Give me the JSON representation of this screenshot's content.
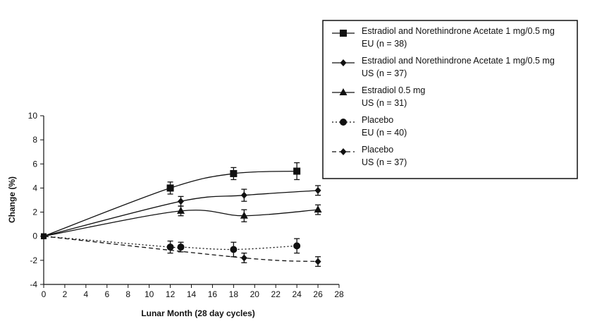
{
  "chart_data": {
    "type": "line",
    "xlabel": "Lunar Month (28 day cycles)",
    "ylabel": "Change (%)",
    "xlim": [
      0,
      28
    ],
    "ylim": [
      -4,
      10
    ],
    "xticks": [
      0,
      2,
      4,
      6,
      8,
      10,
      12,
      14,
      16,
      18,
      20,
      22,
      24,
      26,
      28
    ],
    "yticks": [
      -4,
      -2,
      0,
      2,
      4,
      6,
      8,
      10
    ],
    "grid": false,
    "legend_position": "top-right",
    "series": [
      {
        "name": "Estradiol and Norethindrone Acetate 1 mg/0.5 mg",
        "subname": "EU (n = 38)",
        "marker": "square",
        "line_style": "solid",
        "x": [
          0,
          12,
          18,
          24
        ],
        "y": [
          0,
          4.0,
          5.2,
          5.4
        ],
        "err": [
          0,
          0.5,
          0.5,
          0.7
        ]
      },
      {
        "name": "Estradiol and Norethindrone Acetate 1 mg/0.5 mg",
        "subname": "US (n = 37)",
        "marker": "diamond",
        "line_style": "solid",
        "x": [
          0,
          13,
          19,
          26
        ],
        "y": [
          0,
          2.9,
          3.4,
          3.8
        ],
        "err": [
          0,
          0.4,
          0.5,
          0.4
        ]
      },
      {
        "name": "Estradiol 0.5 mg",
        "subname": "US (n = 31)",
        "marker": "triangle",
        "line_style": "solid",
        "x": [
          0,
          13,
          19,
          26
        ],
        "y": [
          0,
          2.1,
          1.7,
          2.2
        ],
        "err": [
          0,
          0.4,
          0.5,
          0.4
        ]
      },
      {
        "name": "Placebo",
        "subname": "EU (n = 40)",
        "marker": "circle",
        "line_style": "dotted",
        "x": [
          0,
          12,
          13,
          18,
          24
        ],
        "y": [
          0,
          -0.9,
          -0.9,
          -1.1,
          -0.8
        ],
        "err": [
          0,
          0.5,
          0.4,
          0.6,
          0.6
        ]
      },
      {
        "name": "Placebo",
        "subname": "US (n = 37)",
        "marker": "diamond",
        "line_style": "dashed",
        "x": [
          0,
          19,
          26
        ],
        "y": [
          0,
          -1.8,
          -2.1
        ],
        "err": [
          0,
          0.4,
          0.4
        ]
      }
    ]
  }
}
